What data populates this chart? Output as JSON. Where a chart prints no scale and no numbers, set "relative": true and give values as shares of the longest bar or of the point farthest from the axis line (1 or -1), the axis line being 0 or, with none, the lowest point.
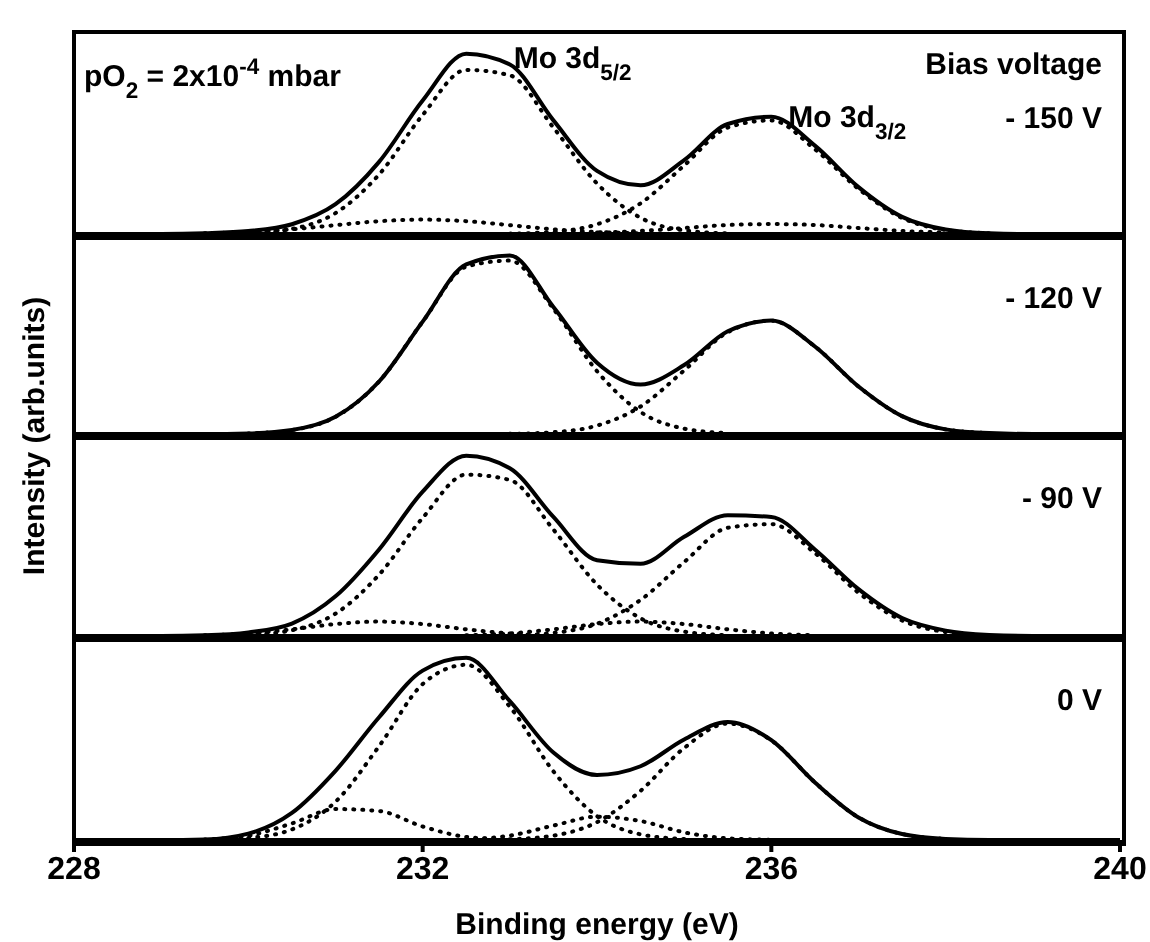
{
  "chart_data": [
    {
      "type": "line",
      "relative": true,
      "tick_labels": false,
      "xlim": [
        228,
        240
      ],
      "xticks": [
        228,
        232,
        236,
        240
      ],
      "x": [
        228,
        229,
        229.5,
        230,
        230.5,
        231,
        231.5,
        232,
        232.5,
        233,
        233.5,
        234,
        234.5,
        235,
        235.5,
        236,
        236.5,
        237,
        237.5,
        238,
        238.5,
        239,
        240
      ],
      "series": [
        {
          "color": "#000000",
          "line_style": "solid",
          "values": [
            0,
            0,
            0.004,
            0.016,
            0.054,
            0.165,
            0.4,
            0.74,
            1.0,
            0.94,
            0.63,
            0.35,
            0.27,
            0.41,
            0.61,
            0.65,
            0.49,
            0.26,
            0.095,
            0.025,
            0.004,
            0,
            0
          ]
        },
        {
          "color": "#000000",
          "line_style": "dotted",
          "values": [
            null,
            null,
            null,
            0.005,
            0.028,
            0.116,
            0.33,
            0.66,
            0.91,
            0.88,
            0.59,
            0.28,
            0.09,
            0.02,
            0.003,
            null,
            null,
            null,
            null,
            null,
            null,
            null,
            null
          ]
        },
        {
          "color": "#000000",
          "line_style": "dotted",
          "values": [
            null,
            null,
            null,
            null,
            null,
            null,
            null,
            null,
            null,
            0.002,
            0.012,
            0.054,
            0.17,
            0.38,
            0.59,
            0.63,
            0.47,
            0.25,
            0.089,
            0.022,
            0.004,
            null,
            null
          ]
        },
        {
          "color": "#000000",
          "line_style": "dotted",
          "values": [
            null,
            null,
            0.004,
            0.011,
            0.026,
            0.049,
            0.071,
            0.08,
            0.071,
            0.049,
            0.026,
            0.011,
            0.004,
            null,
            null,
            null,
            null,
            null,
            null,
            null,
            null,
            null,
            null
          ]
        },
        {
          "color": "#000000",
          "line_style": "dotted",
          "values": [
            null,
            null,
            null,
            null,
            null,
            null,
            null,
            null,
            null,
            null,
            null,
            0.008,
            0.017,
            0.033,
            0.05,
            0.055,
            0.05,
            0.033,
            0.017,
            0.008,
            null,
            null,
            null
          ]
        }
      ],
      "annotations": [
        "pO$_{2}$ = 2x10$^{-4}$ mbar",
        {
          "text": "Mo 3d$_{5/2}$",
          "x": 232.7,
          "y": 1
        },
        {
          "text": "Mo 3d$_{3/2}$",
          "x": 235.85,
          "y": 0.67
        },
        "Bias voltage",
        "- 150 V"
      ]
    },
    {
      "type": "line",
      "relative": true,
      "tick_labels": false,
      "xlim": [
        228,
        240
      ],
      "xticks": [
        228,
        232,
        236,
        240
      ],
      "ylabel": "Intensity (arb.units)",
      "x": [
        228,
        229,
        229.5,
        230,
        230.5,
        231,
        231.5,
        232,
        232.5,
        233,
        233.5,
        234,
        234.5,
        235,
        235.5,
        236,
        236.5,
        237,
        237.5,
        238,
        238.5,
        239,
        240
      ],
      "series": [
        {
          "color": "#000000",
          "line_style": "solid",
          "values": [
            0,
            0,
            0,
            0.003,
            0.022,
            0.096,
            0.294,
            0.629,
            0.95,
            1.0,
            0.711,
            0.399,
            0.277,
            0.386,
            0.575,
            0.635,
            0.49,
            0.266,
            0.1,
            0.026,
            0.005,
            0,
            0
          ]
        },
        {
          "color": "#000000",
          "line_style": "dotted",
          "values": [
            null,
            null,
            null,
            0.003,
            0.022,
            0.096,
            0.294,
            0.629,
            0.937,
            0.971,
            0.701,
            0.352,
            0.123,
            0.03,
            0.005,
            null,
            null,
            null,
            null,
            null,
            null,
            null,
            null
          ]
        },
        {
          "color": "#000000",
          "line_style": "dotted",
          "values": [
            null,
            null,
            null,
            null,
            null,
            null,
            null,
            null,
            null,
            0.001,
            0.01,
            0.047,
            0.154,
            0.356,
            0.57,
            0.635,
            0.49,
            0.266,
            0.1,
            0.026,
            0.005,
            null,
            null
          ]
        }
      ],
      "annotations": [
        "- 120 V"
      ]
    },
    {
      "type": "line",
      "relative": true,
      "tick_labels": false,
      "xlim": [
        228,
        240
      ],
      "xticks": [
        228,
        232,
        236,
        240
      ],
      "x": [
        228,
        229,
        229.5,
        230,
        230.5,
        231,
        231.5,
        232,
        232.5,
        233,
        233.5,
        234,
        234.5,
        235,
        235.5,
        236,
        236.5,
        237,
        237.5,
        238,
        238.5,
        239,
        240
      ],
      "series": [
        {
          "color": "#000000",
          "line_style": "solid",
          "values": [
            0,
            0,
            0.004,
            0.02,
            0.069,
            0.22,
            0.48,
            0.8,
            1.0,
            0.93,
            0.66,
            0.42,
            0.4,
            0.55,
            0.67,
            0.66,
            0.48,
            0.26,
            0.1,
            0.03,
            0.006,
            0,
            0
          ]
        },
        {
          "color": "#000000",
          "line_style": "dotted",
          "values": [
            null,
            null,
            null,
            0.006,
            0.032,
            0.124,
            0.34,
            0.655,
            0.895,
            0.865,
            0.59,
            0.285,
            0.098,
            0.024,
            0.004,
            null,
            null,
            null,
            null,
            null,
            null,
            null,
            null
          ]
        },
        {
          "color": "#000000",
          "line_style": "dotted",
          "values": [
            null,
            null,
            null,
            null,
            null,
            null,
            null,
            null,
            null,
            0.003,
            0.017,
            0.068,
            0.2,
            0.41,
            0.6,
            0.62,
            0.46,
            0.24,
            0.086,
            0.022,
            0.004,
            null,
            null
          ]
        },
        {
          "color": "#000000",
          "line_style": "dotted",
          "values": [
            null,
            null,
            0.004,
            0.014,
            0.037,
            0.066,
            0.08,
            0.066,
            0.037,
            0.014,
            0.004,
            null,
            null,
            null,
            null,
            null,
            null,
            null,
            null,
            null,
            null,
            null,
            null
          ]
        },
        {
          "color": "#000000",
          "line_style": "dotted",
          "values": [
            null,
            null,
            null,
            null,
            null,
            null,
            null,
            null,
            0.004,
            0.014,
            0.037,
            0.066,
            0.08,
            0.066,
            0.037,
            0.014,
            0.004,
            null,
            null,
            null,
            null,
            null,
            null
          ]
        }
      ],
      "annotations": [
        "- 90 V"
      ]
    },
    {
      "type": "line",
      "relative": true,
      "tick_labels": "x",
      "xlim": [
        228,
        240
      ],
      "xticks": [
        228,
        232,
        236,
        240
      ],
      "xlabel": "Binding energy (eV)",
      "x": [
        228,
        229,
        229.5,
        230,
        230.5,
        231,
        231.5,
        232,
        232.5,
        233,
        233.5,
        234,
        234.5,
        235,
        235.5,
        236,
        236.5,
        237,
        237.5,
        238,
        238.5,
        239,
        240
      ],
      "series": [
        {
          "color": "#000000",
          "line_style": "solid",
          "values": [
            0,
            0,
            0.003,
            0.035,
            0.149,
            0.38,
            0.674,
            0.93,
            1.0,
            0.762,
            0.48,
            0.357,
            0.405,
            0.552,
            0.648,
            0.548,
            0.316,
            0.124,
            0.033,
            0.006,
            0,
            0,
            0
          ]
        },
        {
          "color": "#000000",
          "line_style": "dotted",
          "values": [
            null,
            null,
            null,
            0.011,
            0.058,
            0.21,
            0.515,
            0.856,
            0.962,
            0.732,
            0.377,
            0.131,
            0.031,
            0.005,
            null,
            null,
            null,
            null,
            null,
            null,
            null,
            null,
            null
          ]
        },
        {
          "color": "#000000",
          "line_style": "dotted",
          "values": [
            null,
            null,
            0.003,
            0.024,
            0.091,
            0.17,
            0.159,
            0.074,
            0.017,
            0.002,
            null,
            null,
            null,
            null,
            null,
            null,
            null,
            null,
            null,
            null,
            null,
            null,
            null
          ]
        },
        {
          "color": "#000000",
          "line_style": "dotted",
          "values": [
            null,
            null,
            null,
            null,
            null,
            null,
            null,
            null,
            0.004,
            0.024,
            0.079,
            0.128,
            0.104,
            0.042,
            0.009,
            0.001,
            null,
            null,
            null,
            null,
            null,
            null,
            null
          ]
        },
        {
          "color": "#000000",
          "line_style": "dotted",
          "values": [
            null,
            null,
            null,
            null,
            null,
            null,
            null,
            null,
            null,
            0.004,
            0.024,
            0.098,
            0.27,
            0.505,
            0.639,
            0.547,
            0.316,
            0.124,
            0.033,
            0.006,
            null,
            null,
            null
          ]
        }
      ],
      "annotations": [
        "0 V"
      ]
    }
  ]
}
